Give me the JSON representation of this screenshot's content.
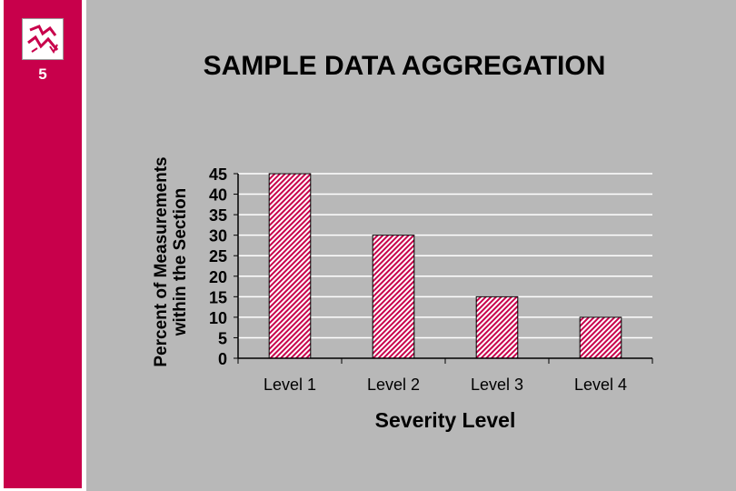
{
  "slide": {
    "number": "5",
    "logo_icon": "lightning-logo-icon",
    "title": "SAMPLE DATA AGGREGATION",
    "band_color": "#c8004b",
    "background_color": "#b8b8b8"
  },
  "chart_data": {
    "type": "bar",
    "categories": [
      "Level 1",
      "Level 2",
      "Level 3",
      "Level 4"
    ],
    "values": [
      45,
      30,
      15,
      10
    ],
    "xlabel": "Severity Level",
    "ylabel_lines": [
      "Percent of Measurements",
      "within the Section"
    ],
    "ylim": [
      0,
      45
    ],
    "yticks": [
      0,
      5,
      10,
      15,
      20,
      25,
      30,
      35,
      40,
      45
    ],
    "grid": true,
    "legend": "none",
    "bar_fill": "hatched red-white",
    "bar_color": "#c8004b"
  }
}
